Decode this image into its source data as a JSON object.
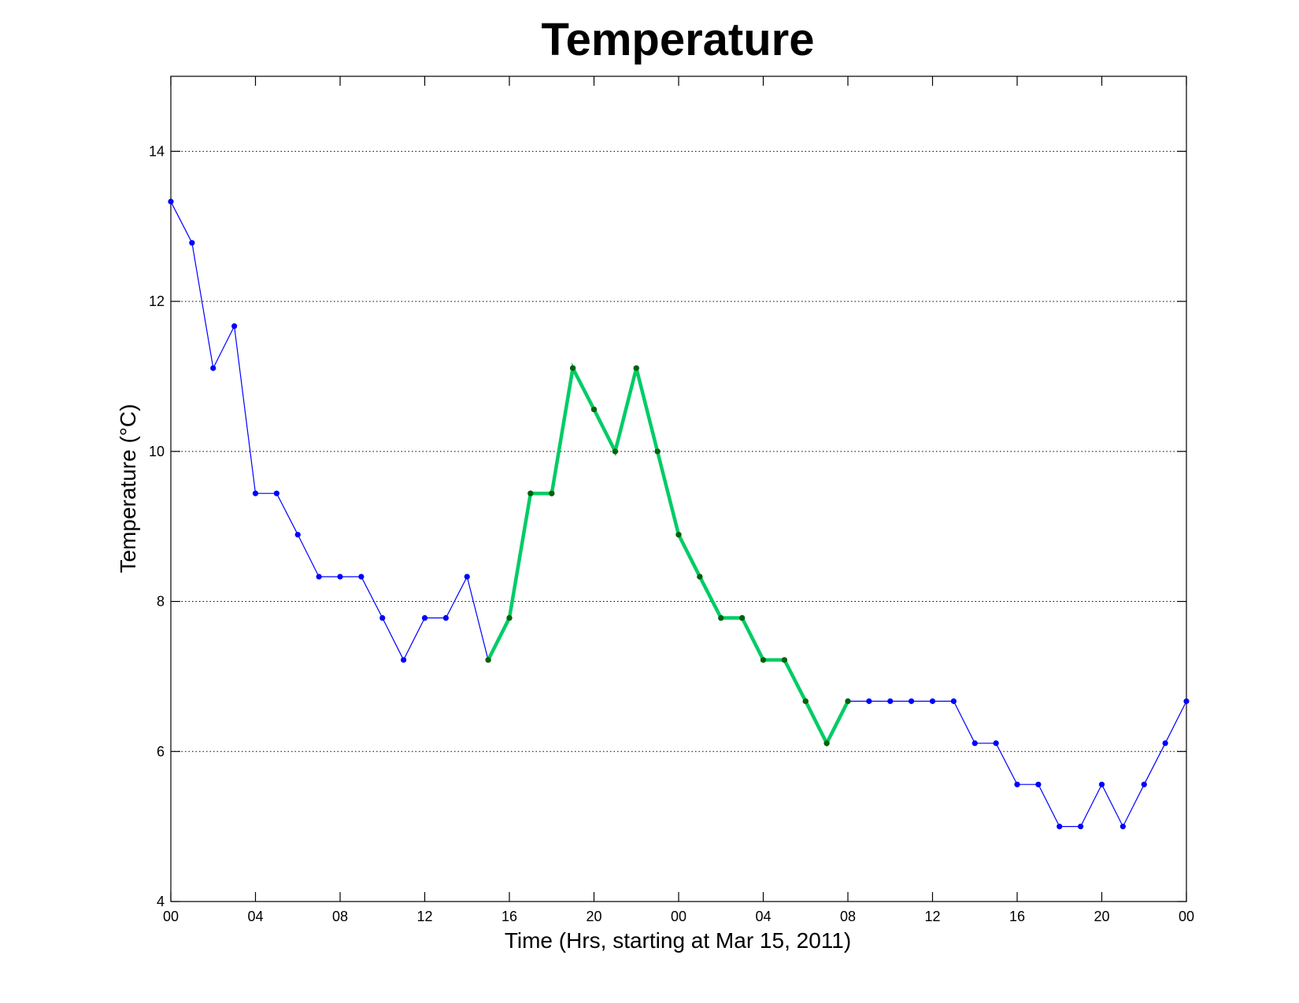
{
  "chart_data": {
    "type": "line",
    "title": "Temperature",
    "xlabel": "Time (Hrs, starting at Mar 15, 2011)",
    "ylabel": "Temperature (°C)",
    "xlim": [
      0,
      48
    ],
    "ylim": [
      4,
      15
    ],
    "grid": "y dotted",
    "x_ticks": [
      {
        "value": 0,
        "label": "00"
      },
      {
        "value": 4,
        "label": "04"
      },
      {
        "value": 8,
        "label": "08"
      },
      {
        "value": 12,
        "label": "12"
      },
      {
        "value": 16,
        "label": "16"
      },
      {
        "value": 20,
        "label": "20"
      },
      {
        "value": 24,
        "label": "00"
      },
      {
        "value": 28,
        "label": "04"
      },
      {
        "value": 32,
        "label": "08"
      },
      {
        "value": 36,
        "label": "12"
      },
      {
        "value": 40,
        "label": "16"
      },
      {
        "value": 44,
        "label": "20"
      },
      {
        "value": 48,
        "label": "00"
      }
    ],
    "y_ticks": [
      4,
      6,
      8,
      10,
      12,
      14
    ],
    "x": [
      0,
      1,
      2,
      3,
      4,
      5,
      6,
      7,
      8,
      9,
      10,
      11,
      12,
      13,
      14,
      15,
      16,
      17,
      18,
      19,
      20,
      21,
      22,
      23,
      24,
      25,
      26,
      27,
      28,
      29,
      30,
      31,
      32,
      33,
      34,
      35,
      36,
      37,
      38,
      39,
      40,
      41,
      42,
      43,
      44,
      45,
      46,
      47,
      48
    ],
    "series": [
      {
        "color": "#0000ff",
        "marker_color": "#0000ff",
        "x_range": [
          0,
          48
        ],
        "values": [
          13.33,
          12.78,
          11.11,
          11.67,
          9.44,
          9.44,
          8.89,
          8.33,
          8.33,
          8.33,
          7.78,
          7.22,
          7.78,
          7.78,
          8.33,
          7.22,
          7.78,
          9.44,
          9.44,
          11.11,
          10.56,
          10.0,
          11.11,
          10.0,
          8.89,
          8.33,
          7.78,
          7.78,
          7.22,
          7.22,
          6.67,
          6.11,
          6.67,
          6.67,
          6.67,
          6.67,
          6.67,
          6.67,
          6.11,
          6.11,
          5.56,
          5.56,
          5.0,
          5.0,
          5.56,
          5.0,
          5.56,
          6.11,
          6.67
        ]
      },
      {
        "color": "#00cc66",
        "marker_color": "#006400",
        "x_range": [
          15,
          32
        ],
        "highlight": true
      }
    ]
  }
}
